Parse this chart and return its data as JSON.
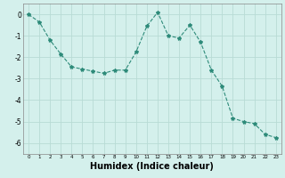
{
  "x": [
    0,
    1,
    2,
    3,
    4,
    5,
    6,
    7,
    8,
    9,
    10,
    11,
    12,
    13,
    14,
    15,
    16,
    17,
    18,
    19,
    20,
    21,
    22,
    23
  ],
  "y": [
    0.0,
    -0.35,
    -1.2,
    -1.85,
    -2.45,
    -2.55,
    -2.65,
    -2.75,
    -2.6,
    -2.6,
    -1.75,
    -0.55,
    0.1,
    -1.0,
    -1.1,
    -0.5,
    -1.3,
    -2.6,
    -3.35,
    -4.85,
    -5.0,
    -5.1,
    -5.6,
    -5.75
  ],
  "line_color": "#2e8b7a",
  "marker": "*",
  "marker_size": 3,
  "bg_color": "#d4f0ec",
  "grid_color": "#b8dbd5",
  "xlabel": "Humidex (Indice chaleur)",
  "xlabel_fontsize": 7,
  "xlim": [
    -0.5,
    23.5
  ],
  "ylim": [
    -6.5,
    0.5
  ],
  "yticks": [
    0,
    -1,
    -2,
    -3,
    -4,
    -5,
    -6
  ],
  "xticks": [
    0,
    1,
    2,
    3,
    4,
    5,
    6,
    7,
    8,
    9,
    10,
    11,
    12,
    13,
    14,
    15,
    16,
    17,
    18,
    19,
    20,
    21,
    22,
    23
  ]
}
